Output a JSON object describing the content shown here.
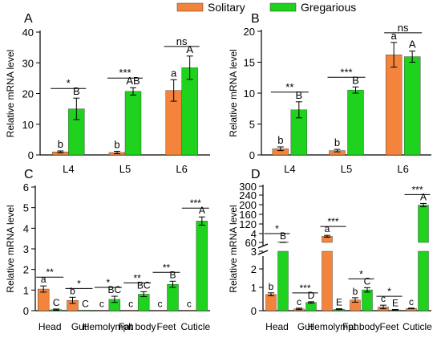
{
  "legend": {
    "items": [
      {
        "label": "Solitary",
        "color": "#f4843c"
      },
      {
        "label": "Gregarious",
        "color": "#1ed21e"
      }
    ]
  },
  "colors": {
    "solitary": "#f4843c",
    "gregarious": "#1ed21e",
    "axis": "#000000"
  },
  "chart_data": [
    {
      "panel": "A",
      "type": "bar",
      "ylabel": "Relative mRNA level",
      "ylim": [
        0,
        40
      ],
      "yticks": [
        0,
        10,
        20,
        30,
        40
      ],
      "categories": [
        "L4",
        "L5",
        "L6"
      ],
      "series": [
        {
          "name": "Solitary",
          "values": [
            1,
            0.8,
            21
          ],
          "errors": [
            0.3,
            0.4,
            3.5
          ],
          "letters": [
            "b",
            "b",
            "a"
          ]
        },
        {
          "name": "Gregarious",
          "values": [
            15,
            20.7,
            28.4
          ],
          "errors": [
            3.5,
            1.2,
            3.8
          ],
          "letters": [
            "B",
            "AB",
            "A"
          ]
        }
      ],
      "significance": [
        "*",
        "***",
        "ns"
      ]
    },
    {
      "panel": "B",
      "type": "bar",
      "ylabel": "Relative mRNA level",
      "ylim": [
        0,
        20
      ],
      "yticks": [
        0,
        5,
        10,
        15,
        20
      ],
      "categories": [
        "L4",
        "L5",
        "L6"
      ],
      "series": [
        {
          "name": "Solitary",
          "values": [
            1,
            0.7,
            16.2
          ],
          "errors": [
            0.3,
            0.2,
            2
          ],
          "letters": [
            "b",
            "b",
            "a"
          ]
        },
        {
          "name": "Gregarious",
          "values": [
            7.3,
            10.5,
            15.9
          ],
          "errors": [
            1.3,
            0.5,
            0.9
          ],
          "letters": [
            "B",
            "B",
            "A"
          ]
        }
      ],
      "significance": [
        "**",
        "***",
        "ns"
      ]
    },
    {
      "panel": "C",
      "type": "bar",
      "ylabel": "Relative mRNA level",
      "ylim": [
        0,
        6
      ],
      "yticks": [
        0,
        1,
        2,
        3,
        4,
        5,
        6
      ],
      "categories": [
        "Head",
        "Gut",
        "Hemolymph",
        "Fat body",
        "Feet",
        "Cuticle"
      ],
      "series": [
        {
          "name": "Solitary",
          "values": [
            1.05,
            0.5,
            0.02,
            0.02,
            0.02,
            0.02
          ],
          "errors": [
            0.15,
            0.15,
            0,
            0,
            0,
            0
          ],
          "letters": [
            "a",
            "b",
            "c",
            "c",
            "c",
            "c"
          ]
        },
        {
          "name": "Gregarious",
          "values": [
            0.05,
            0.02,
            0.55,
            0.8,
            1.28,
            4.35
          ],
          "errors": [
            0.03,
            0,
            0.15,
            0.12,
            0.15,
            0.2
          ],
          "letters": [
            "C",
            "C",
            "BC",
            "BC",
            "B",
            "A"
          ]
        }
      ],
      "significance": [
        "**",
        "*",
        "*",
        "**",
        "**",
        "***"
      ]
    },
    {
      "panel": "D",
      "type": "bar",
      "ylabel": "Relative mRNA level",
      "axis_break": true,
      "yticks": [
        0,
        1,
        2,
        3,
        4,
        60,
        120,
        160,
        200,
        240,
        300
      ],
      "categories": [
        "Head",
        "Gut",
        "Hemolymph",
        "Fat body",
        "Feet",
        "Cuticle"
      ],
      "series": [
        {
          "name": "Solitary",
          "values": [
            1.1,
            0.12,
            80,
            0.72,
            0.25,
            0.15
          ],
          "errors": [
            0.1,
            0.05,
            3,
            0.15,
            0.12,
            0.02
          ],
          "letters": [
            "b",
            "c",
            "a",
            "b",
            "c",
            "c"
          ]
        },
        {
          "name": "Gregarious",
          "values": [
            30,
            0.55,
            0.1,
            1.4,
            0.05,
            210
          ],
          "errors": [
            3,
            0.05,
            0.03,
            0.15,
            0.03,
            8
          ],
          "letters": [
            "B",
            "D",
            "E",
            "C",
            "E",
            "A"
          ]
        }
      ],
      "significance": [
        "*",
        "***",
        "***",
        "*",
        "*",
        "***"
      ]
    }
  ]
}
